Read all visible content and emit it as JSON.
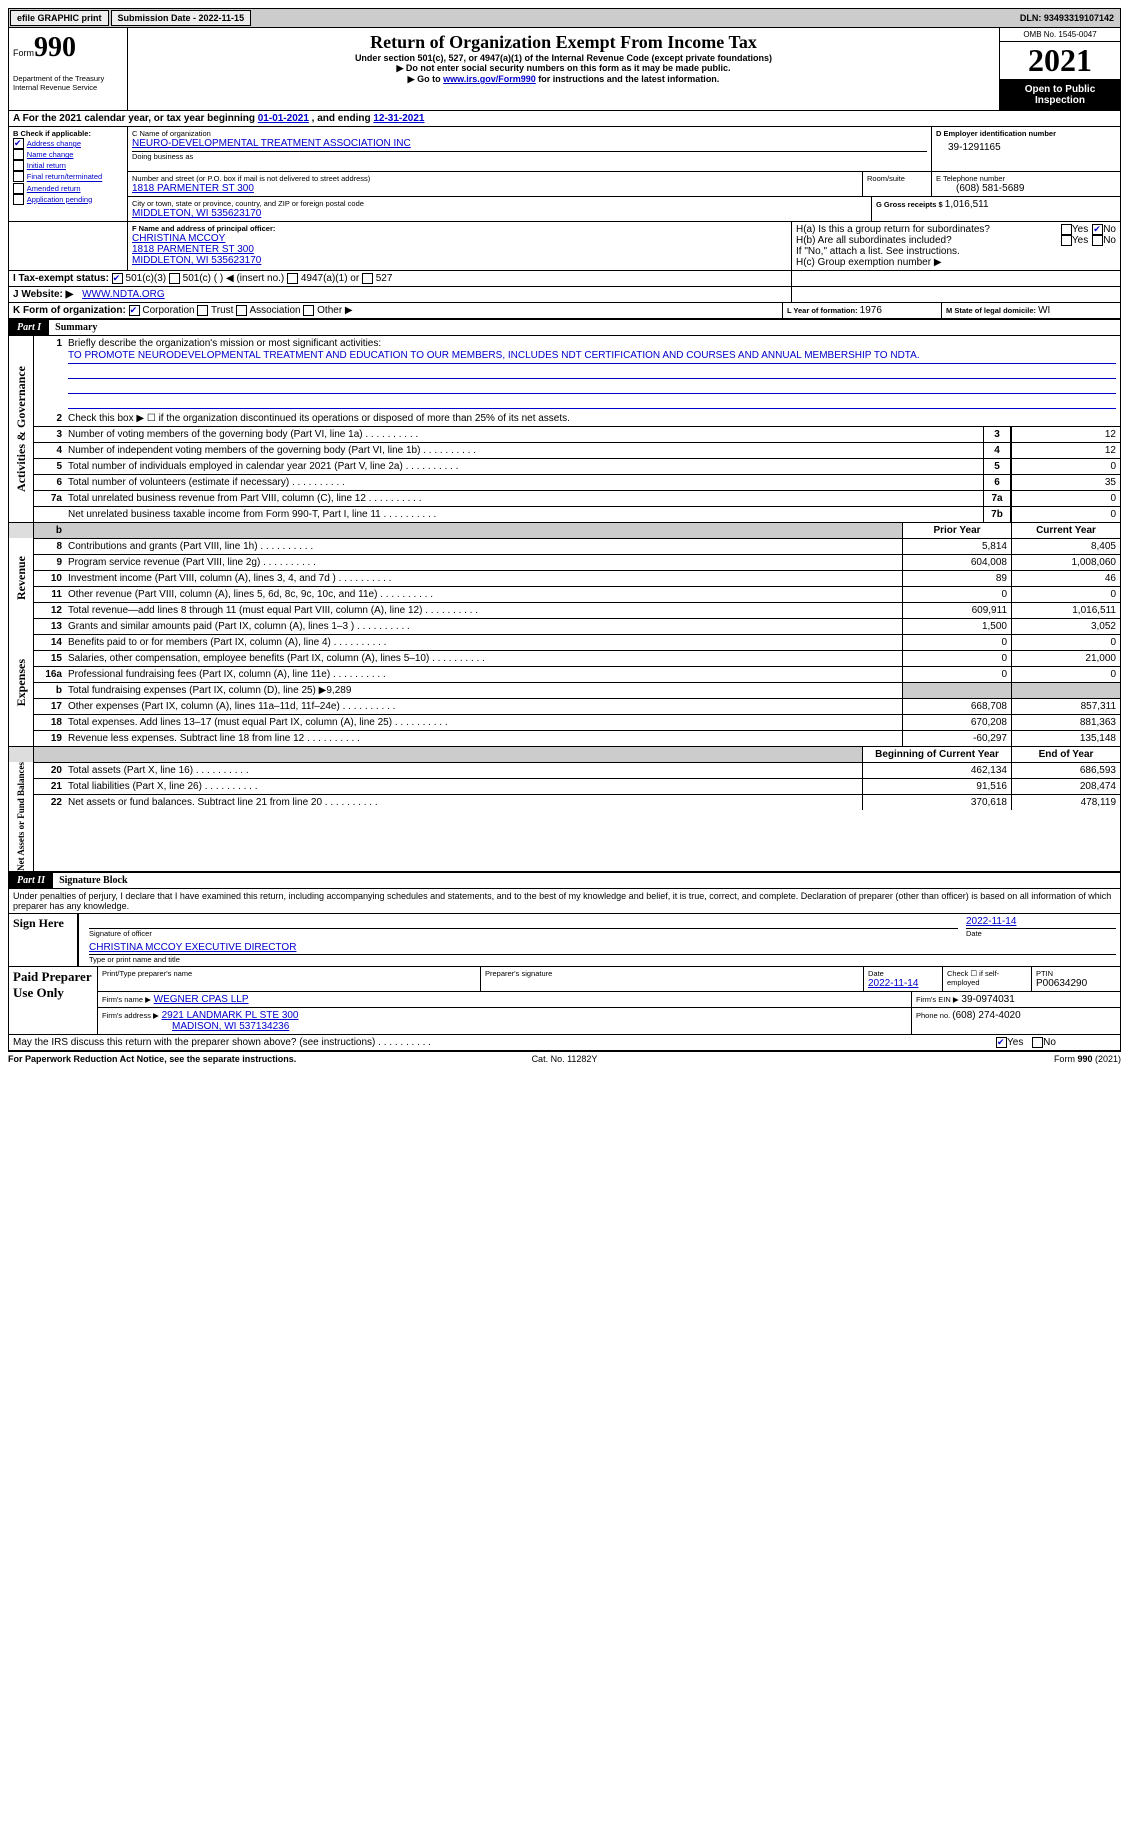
{
  "topbar": {
    "efile_label": "efile GRAPHIC print",
    "submission_label": "Submission Date - 2022-11-15",
    "dln_label": "DLN: 93493319107142"
  },
  "header": {
    "form_label": "Form",
    "form_number": "990",
    "title": "Return of Organization Exempt From Income Tax",
    "subtitle": "Under section 501(c), 527, or 4947(a)(1) of the Internal Revenue Code (except private foundations)",
    "note1": "▶ Do not enter social security numbers on this form as it may be made public.",
    "note2_prefix": "▶ Go to ",
    "note2_link": "www.irs.gov/Form990",
    "note2_suffix": " for instructions and the latest information.",
    "dept": "Department of the Treasury",
    "irs": "Internal Revenue Service",
    "omb": "OMB No. 1545-0047",
    "year": "2021",
    "open_public": "Open to Public Inspection"
  },
  "period": {
    "label_a": "A For the 2021 calendar year, or tax year beginning ",
    "begin": "01-01-2021",
    "mid": " , and ending ",
    "end": "12-31-2021"
  },
  "section_b": {
    "label": "B Check if applicable:",
    "items": [
      {
        "checked": true,
        "label": "Address change"
      },
      {
        "checked": false,
        "label": "Name change"
      },
      {
        "checked": false,
        "label": "Initial return"
      },
      {
        "checked": false,
        "label": "Final return/terminated"
      },
      {
        "checked": false,
        "label": "Amended return"
      },
      {
        "checked": false,
        "label": "Application pending"
      }
    ]
  },
  "section_c": {
    "name_label": "C Name of organization",
    "name": "NEURO-DEVELOPMENTAL TREATMENT ASSOCIATION INC",
    "dba_label": "Doing business as",
    "street_label": "Number and street (or P.O. box if mail is not delivered to street address)",
    "room_label": "Room/suite",
    "street": "1818 PARMENTER ST 300",
    "city_label": "City or town, state or province, country, and ZIP or foreign postal code",
    "city": "MIDDLETON, WI  535623170"
  },
  "section_d": {
    "label": "D Employer identification number",
    "value": "39-1291165"
  },
  "section_e": {
    "label": "E Telephone number",
    "value": "(608) 581-5689"
  },
  "section_g": {
    "label": "G Gross receipts $ ",
    "value": "1,016,511"
  },
  "section_f": {
    "label": "F Name and address of principal officer:",
    "name": "CHRISTINA MCCOY",
    "addr1": "1818 PARMENTER ST 300",
    "addr2": "MIDDLETON, WI  535623170"
  },
  "section_h": {
    "a_label": "H(a) Is this a group return for subordinates?",
    "a_yes": "Yes",
    "a_no": "No",
    "a_no_checked": true,
    "b_label": "H(b) Are all subordinates included?",
    "b_yes": "Yes",
    "b_no": "No",
    "b_note": "If \"No,\" attach a list. See instructions.",
    "c_label": "H(c) Group exemption number ▶"
  },
  "section_i": {
    "label": "I    Tax-exempt status:",
    "opts": [
      {
        "checked": true,
        "label": "501(c)(3)"
      },
      {
        "checked": false,
        "label": "501(c) (  ) ◀ (insert no.)"
      },
      {
        "checked": false,
        "label": "4947(a)(1) or"
      },
      {
        "checked": false,
        "label": "527"
      }
    ]
  },
  "section_j": {
    "label": "J    Website: ▶",
    "value": "WWW.NDTA.ORG"
  },
  "section_k": {
    "label": "K Form of organization:",
    "opts": [
      {
        "checked": true,
        "label": "Corporation"
      },
      {
        "checked": false,
        "label": "Trust"
      },
      {
        "checked": false,
        "label": "Association"
      },
      {
        "checked": false,
        "label": "Other ▶"
      }
    ]
  },
  "section_l": {
    "label": "L Year of formation: ",
    "value": "1976"
  },
  "section_m": {
    "label": "M State of legal domicile: ",
    "value": "WI"
  },
  "part1": {
    "tab": "Part I",
    "title": "Summary",
    "line1_label": "Briefly describe the organization's mission or most significant activities:",
    "mission": "TO PROMOTE NEURODEVELOPMENTAL TREATMENT AND EDUCATION TO OUR MEMBERS, INCLUDES NDT CERTIFICATION AND COURSES AND ANNUAL MEMBERSHIP TO NDTA.",
    "line2_label": "Check this box ▶ ☐ if the organization discontinued its operations or disposed of more than 25% of its net assets.",
    "side_labels": {
      "activities": "Activities & Governance",
      "revenue": "Revenue",
      "expenses": "Expenses",
      "netassets": "Net Assets or Fund Balances"
    },
    "col_headers": {
      "prior": "Prior Year",
      "current": "Current Year",
      "boc": "Beginning of Current Year",
      "eoy": "End of Year"
    },
    "governance_lines": [
      {
        "num": "3",
        "desc": "Number of voting members of the governing body (Part VI, line 1a)",
        "box": "3",
        "val": "12"
      },
      {
        "num": "4",
        "desc": "Number of independent voting members of the governing body (Part VI, line 1b)",
        "box": "4",
        "val": "12"
      },
      {
        "num": "5",
        "desc": "Total number of individuals employed in calendar year 2021 (Part V, line 2a)",
        "box": "5",
        "val": "0"
      },
      {
        "num": "6",
        "desc": "Total number of volunteers (estimate if necessary)",
        "box": "6",
        "val": "35"
      },
      {
        "num": "7a",
        "desc": "Total unrelated business revenue from Part VIII, column (C), line 12",
        "box": "7a",
        "val": "0"
      },
      {
        "num": "",
        "desc": "Net unrelated business taxable income from Form 990-T, Part I, line 11",
        "box": "7b",
        "val": "0"
      }
    ],
    "num7b": "b",
    "revenue_lines": [
      {
        "num": "8",
        "desc": "Contributions and grants (Part VIII, line 1h)",
        "prior": "5,814",
        "current": "8,405"
      },
      {
        "num": "9",
        "desc": "Program service revenue (Part VIII, line 2g)",
        "prior": "604,008",
        "current": "1,008,060"
      },
      {
        "num": "10",
        "desc": "Investment income (Part VIII, column (A), lines 3, 4, and 7d )",
        "prior": "89",
        "current": "46"
      },
      {
        "num": "11",
        "desc": "Other revenue (Part VIII, column (A), lines 5, 6d, 8c, 9c, 10c, and 11e)",
        "prior": "0",
        "current": "0"
      },
      {
        "num": "12",
        "desc": "Total revenue—add lines 8 through 11 (must equal Part VIII, column (A), line 12)",
        "prior": "609,911",
        "current": "1,016,511"
      }
    ],
    "expense_lines": [
      {
        "num": "13",
        "desc": "Grants and similar amounts paid (Part IX, column (A), lines 1–3 )",
        "prior": "1,500",
        "current": "3,052"
      },
      {
        "num": "14",
        "desc": "Benefits paid to or for members (Part IX, column (A), line 4)",
        "prior": "0",
        "current": "0"
      },
      {
        "num": "15",
        "desc": "Salaries, other compensation, employee benefits (Part IX, column (A), lines 5–10)",
        "prior": "0",
        "current": "21,000"
      },
      {
        "num": "16a",
        "desc": "Professional fundraising fees (Part IX, column (A), line 11e)",
        "prior": "0",
        "current": "0"
      },
      {
        "num": "b",
        "desc": "Total fundraising expenses (Part IX, column (D), line 25) ▶9,289",
        "prior": "",
        "current": "",
        "shaded": true
      },
      {
        "num": "17",
        "desc": "Other expenses (Part IX, column (A), lines 11a–11d, 11f–24e)",
        "prior": "668,708",
        "current": "857,311"
      },
      {
        "num": "18",
        "desc": "Total expenses. Add lines 13–17 (must equal Part IX, column (A), line 25)",
        "prior": "670,208",
        "current": "881,363"
      },
      {
        "num": "19",
        "desc": "Revenue less expenses. Subtract line 18 from line 12",
        "prior": "-60,297",
        "current": "135,148"
      }
    ],
    "netasset_lines": [
      {
        "num": "20",
        "desc": "Total assets (Part X, line 16)",
        "prior": "462,134",
        "current": "686,593"
      },
      {
        "num": "21",
        "desc": "Total liabilities (Part X, line 26)",
        "prior": "91,516",
        "current": "208,474"
      },
      {
        "num": "22",
        "desc": "Net assets or fund balances. Subtract line 21 from line 20",
        "prior": "370,618",
        "current": "478,119"
      }
    ]
  },
  "part2": {
    "tab": "Part II",
    "title": "Signature Block",
    "declaration": "Under penalties of perjury, I declare that I have examined this return, including accompanying schedules and statements, and to the best of my knowledge and belief, it is true, correct, and complete. Declaration of preparer (other than officer) is based on all information of which preparer has any knowledge.",
    "sign_here": "Sign Here",
    "sig_officer_label": "Signature of officer",
    "sig_date": "2022-11-14",
    "sig_date_label": "Date",
    "officer_name": "CHRISTINA MCCOY  EXECUTIVE DIRECTOR",
    "officer_name_label": "Type or print name and title",
    "paid_preparer": "Paid Preparer Use Only",
    "pp_name_label": "Print/Type preparer's name",
    "pp_sig_label": "Preparer's signature",
    "pp_date_label": "Date",
    "pp_date": "2022-11-14",
    "pp_self_label": "Check ☐ if self-employed",
    "pp_ptin_label": "PTIN",
    "pp_ptin": "P00634290",
    "firm_name_label": "Firm's name    ▶",
    "firm_name": "WEGNER CPAS LLP",
    "firm_ein_label": "Firm's EIN ▶",
    "firm_ein": "39-0974031",
    "firm_addr_label": "Firm's address ▶",
    "firm_addr1": "2921 LANDMARK PL STE 300",
    "firm_addr2": "MADISON, WI  537134236",
    "firm_phone_label": "Phone no. ",
    "firm_phone": "(608) 274-4020",
    "discuss_label": "May the IRS discuss this return with the preparer shown above? (see instructions)",
    "discuss_yes": "Yes",
    "discuss_no": "No",
    "discuss_yes_checked": true
  },
  "footer": {
    "left": "For Paperwork Reduction Act Notice, see the separate instructions.",
    "center": "Cat. No. 11282Y",
    "right": "Form 990 (2021)"
  }
}
